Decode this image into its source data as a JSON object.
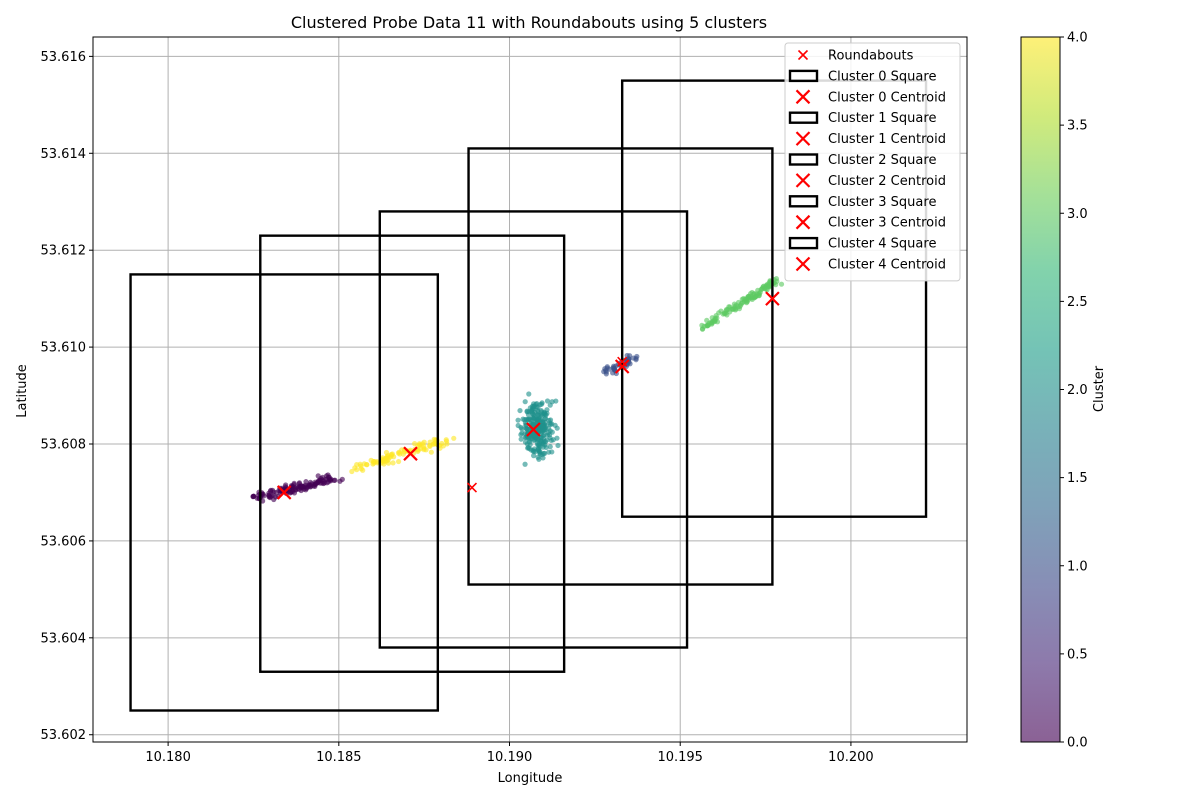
{
  "chart_data": {
    "type": "scatter",
    "title": "Clustered Probe Data 11 with Roundabouts using 5 clusters",
    "xlabel": "Longitude",
    "ylabel": "Latitude",
    "xlim": [
      10.1778,
      10.2034
    ],
    "ylim": [
      53.60185,
      53.6164
    ],
    "xticks": [
      10.18,
      10.185,
      10.19,
      10.195,
      10.2
    ],
    "xtick_labels": [
      "10.180",
      "10.185",
      "10.190",
      "10.195",
      "10.200"
    ],
    "yticks": [
      53.602,
      53.604,
      53.606,
      53.608,
      53.61,
      53.612,
      53.614,
      53.616
    ],
    "ytick_labels": [
      "53.602",
      "53.604",
      "53.606",
      "53.608",
      "53.610",
      "53.612",
      "53.614",
      "53.616"
    ],
    "grid": true,
    "legend_position": "top-right",
    "colormap": "viridis",
    "colorbar": {
      "label": "Cluster",
      "range": [
        0,
        4
      ],
      "ticks": [
        0,
        0.5,
        1,
        1.5,
        2,
        2.5,
        3,
        3.5,
        4
      ],
      "tick_labels": [
        "0.0",
        "0.5",
        "1.0",
        "1.5",
        "2.0",
        "2.5",
        "3.0",
        "3.5",
        "4.0"
      ]
    },
    "clusters": [
      {
        "id": 0,
        "color": "#440154",
        "centroid": [
          10.1834,
          53.607
        ],
        "square": {
          "x0": 10.1789,
          "x1": 10.1879,
          "y0": 53.6025,
          "y1": 53.6115
        },
        "points": {
          "x0": 10.1826,
          "y0": 53.6069,
          "x1": 10.1849,
          "y1": 53.6073,
          "n": 140,
          "jitter_x": 0.00025,
          "jitter_y": 9e-05
        }
      },
      {
        "id": 1,
        "color": "#3b528b",
        "centroid": [
          10.1933,
          53.6096
        ],
        "square": {
          "x0": 10.1933,
          "x1": 10.2022,
          "y0": 53.6065,
          "y1": 53.6155
        },
        "points": {
          "x0": 10.1928,
          "y0": 53.6095,
          "x1": 10.1937,
          "y1": 53.6098,
          "n": 45,
          "jitter_x": 0.00012,
          "jitter_y": 0.00012
        }
      },
      {
        "id": 2,
        "color": "#21918c",
        "centroid": [
          10.1907,
          53.6083
        ],
        "square": {
          "x0": 10.1888,
          "x1": 10.1977,
          "y0": 53.6051,
          "y1": 53.6141
        },
        "points": {
          "x0": 10.1908,
          "y0": 53.6083,
          "x1": 10.1908,
          "y1": 53.6083,
          "n": 260,
          "jitter_x": 0.00045,
          "jitter_y": 0.00055
        }
      },
      {
        "id": 3,
        "color": "#5ec962",
        "centroid": [
          10.1977,
          53.611
        ],
        "square": {
          "x0": 10.1862,
          "x1": 10.1952,
          "y0": 53.6038,
          "y1": 53.6128
        },
        "points": {
          "x0": 10.1956,
          "y0": 53.6104,
          "x1": 10.1979,
          "y1": 53.6114,
          "n": 120,
          "jitter_x": 0.0001,
          "jitter_y": 8e-05
        }
      },
      {
        "id": 4,
        "color": "#fde725",
        "centroid": [
          10.1871,
          53.6078
        ],
        "square": {
          "x0": 10.1827,
          "x1": 10.1916,
          "y0": 53.6033,
          "y1": 53.6123
        },
        "points": {
          "x0": 10.1855,
          "y0": 53.6075,
          "x1": 10.1882,
          "y1": 53.6081,
          "n": 95,
          "jitter_x": 0.0002,
          "jitter_y": 0.0001
        }
      }
    ],
    "roundabouts": [
      {
        "x": 10.1834,
        "y": 53.607
      },
      {
        "x": 10.1889,
        "y": 53.6071
      },
      {
        "x": 10.1933,
        "y": 53.6097
      },
      {
        "x": 10.1977,
        "y": 53.611
      }
    ],
    "legend": [
      {
        "label": "Roundabouts",
        "marker": "x-small"
      },
      {
        "label": "Cluster 0 Square",
        "marker": "square"
      },
      {
        "label": "Cluster 0 Centroid",
        "marker": "x-large"
      },
      {
        "label": "Cluster 1 Square",
        "marker": "square"
      },
      {
        "label": "Cluster 1 Centroid",
        "marker": "x-large"
      },
      {
        "label": "Cluster 2 Square",
        "marker": "square"
      },
      {
        "label": "Cluster 2 Centroid",
        "marker": "x-large"
      },
      {
        "label": "Cluster 3 Square",
        "marker": "square"
      },
      {
        "label": "Cluster 3 Centroid",
        "marker": "x-large"
      },
      {
        "label": "Cluster 4 Square",
        "marker": "square"
      },
      {
        "label": "Cluster 4 Centroid",
        "marker": "x-large"
      }
    ],
    "colors": {
      "marker_red": "#ff0000",
      "square_stroke": "#000000",
      "grid": "#b0b0b0"
    }
  }
}
